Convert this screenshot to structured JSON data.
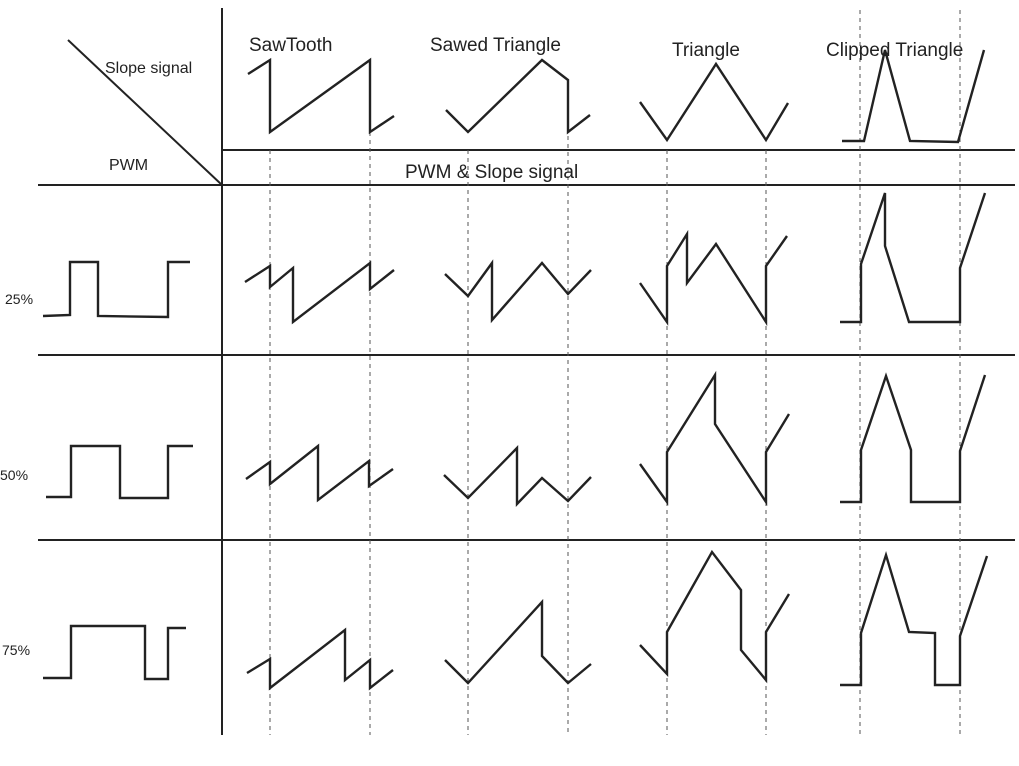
{
  "corner": {
    "top_label": "Slope signal",
    "bottom_label": "PWM"
  },
  "header_band_label": "PWM & Slope signal",
  "columns": [
    {
      "key": "sawtooth",
      "label": "SawTooth"
    },
    {
      "key": "sawed-triangle",
      "label": "Sawed Triangle"
    },
    {
      "key": "triangle",
      "label": "Triangle"
    },
    {
      "key": "clipped-triangle",
      "label": "Clipped Triangle"
    }
  ],
  "rows": [
    {
      "key": "25",
      "label": "25%"
    },
    {
      "key": "50",
      "label": "50%"
    },
    {
      "key": "75",
      "label": "75%"
    }
  ]
}
